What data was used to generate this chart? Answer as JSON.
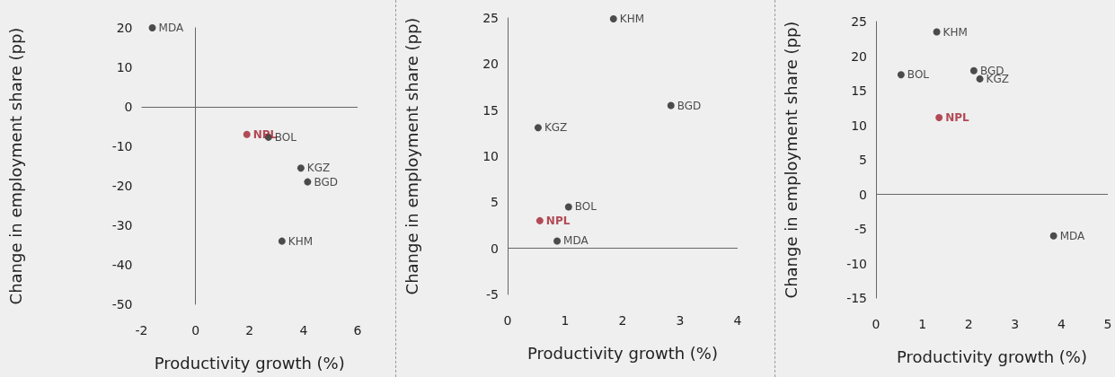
{
  "chart_data": [
    {
      "type": "scatter",
      "marker": "circle",
      "xlabel": "Productivity growth (%)",
      "ylabel": "Change in employment share (pp)",
      "xlim": [
        -2,
        6
      ],
      "xticks": [
        -2,
        0,
        2,
        4,
        6
      ],
      "ylim": [
        -50,
        20
      ],
      "yticks": [
        -50,
        -40,
        -30,
        -20,
        -10,
        0,
        10,
        20
      ],
      "ref_lines": [
        {
          "axis": "y",
          "value": 0
        }
      ],
      "series": [
        {
          "name": "MDA",
          "color": "#222222",
          "x": [
            -1.6
          ],
          "values": [
            20
          ]
        },
        {
          "name": "NPL",
          "color": "#a3202e",
          "x": [
            1.9
          ],
          "values": [
            -7
          ]
        },
        {
          "name": "BOL",
          "color": "#222222",
          "x": [
            2.7
          ],
          "values": [
            -7.7
          ]
        },
        {
          "name": "KGZ",
          "color": "#222222",
          "x": [
            3.9
          ],
          "values": [
            -15.5
          ]
        },
        {
          "name": "BGD",
          "color": "#222222",
          "x": [
            4.15
          ],
          "values": [
            -19
          ]
        },
        {
          "name": "KHM",
          "color": "#222222",
          "x": [
            3.2
          ],
          "values": [
            -34
          ]
        }
      ]
    },
    {
      "type": "scatter",
      "marker": "circle",
      "xlabel": "Productivity growth (%)",
      "ylabel": "Change in employment share (pp)",
      "xlim": [
        0,
        4
      ],
      "xticks": [
        0,
        1,
        2,
        3,
        4
      ],
      "ylim": [
        -5,
        25
      ],
      "yticks": [
        -5,
        0,
        5,
        10,
        15,
        20,
        25
      ],
      "ref_lines": [
        {
          "axis": "y",
          "value": 0
        }
      ],
      "series": [
        {
          "name": "KHM",
          "color": "#222222",
          "x": [
            1.84
          ],
          "values": [
            24.9
          ]
        },
        {
          "name": "BGD",
          "color": "#222222",
          "x": [
            2.84
          ],
          "values": [
            15.5
          ]
        },
        {
          "name": "KGZ",
          "color": "#222222",
          "x": [
            0.53
          ],
          "values": [
            13.1
          ]
        },
        {
          "name": "BOL",
          "color": "#222222",
          "x": [
            1.06
          ],
          "values": [
            4.5
          ]
        },
        {
          "name": "NPL",
          "color": "#a3202e",
          "x": [
            0.56
          ],
          "values": [
            3
          ]
        },
        {
          "name": "MDA",
          "color": "#222222",
          "x": [
            0.86
          ],
          "values": [
            0.8
          ]
        }
      ]
    },
    {
      "type": "scatter",
      "marker": "circle",
      "xlabel": "Productivity growth (%)",
      "ylabel": "Change in employment share (pp)",
      "xlim": [
        0,
        5
      ],
      "xticks": [
        0,
        1,
        2,
        3,
        4,
        5
      ],
      "ylim": [
        -15,
        25
      ],
      "yticks": [
        -15,
        -10,
        -5,
        0,
        5,
        10,
        15,
        20,
        25
      ],
      "ref_lines": [
        {
          "axis": "y",
          "value": 0
        }
      ],
      "series": [
        {
          "name": "KHM",
          "color": "#222222",
          "x": [
            1.31
          ],
          "values": [
            23.5
          ]
        },
        {
          "name": "BOL",
          "color": "#222222",
          "x": [
            0.54
          ],
          "values": [
            17.3
          ]
        },
        {
          "name": "BGD",
          "color": "#222222",
          "x": [
            2.11
          ],
          "values": [
            17.9
          ]
        },
        {
          "name": "KGZ",
          "color": "#222222",
          "x": [
            2.24
          ],
          "values": [
            16.7
          ]
        },
        {
          "name": "NPL",
          "color": "#a3202e",
          "x": [
            1.36
          ],
          "values": [
            11.1
          ]
        },
        {
          "name": "MDA",
          "color": "#222222",
          "x": [
            3.83
          ],
          "values": [
            -6
          ]
        }
      ]
    }
  ]
}
